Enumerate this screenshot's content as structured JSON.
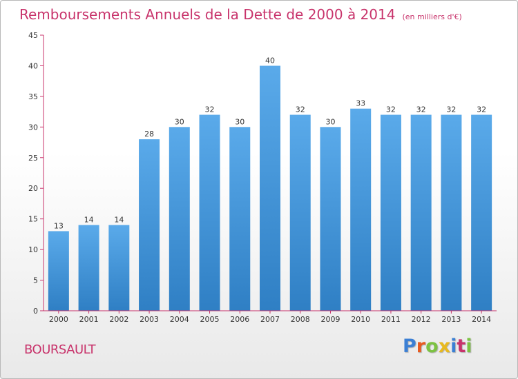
{
  "title": "Remboursements Annuels de la Dette de 2000 à 2014",
  "title_unit": "(en milliers d'€)",
  "place_name": "BOURSAULT",
  "logo": {
    "letters": [
      "P",
      "r",
      "o",
      "x",
      "i",
      "t",
      "i"
    ],
    "colors": [
      "#3b7fd4",
      "#e85a1f",
      "#7cc242",
      "#e8b91f",
      "#3b7fd4",
      "#c8336b",
      "#7cc242"
    ]
  },
  "chart_data": {
    "type": "bar",
    "categories": [
      "2000",
      "2001",
      "2002",
      "2003",
      "2004",
      "2005",
      "2006",
      "2007",
      "2008",
      "2009",
      "2010",
      "2011",
      "2012",
      "2013",
      "2014"
    ],
    "values": [
      13,
      14,
      14,
      28,
      30,
      32,
      30,
      40,
      32,
      30,
      33,
      32,
      32,
      32,
      32
    ],
    "data_labels": [
      "13",
      "14",
      "14",
      "28",
      "30",
      "32",
      "30",
      "40",
      "32",
      "30",
      "33",
      "32",
      "32",
      "32",
      "32"
    ],
    "y_ticks": [
      0,
      5,
      10,
      15,
      20,
      25,
      30,
      35,
      40,
      45
    ],
    "ylim": [
      0,
      45
    ],
    "grid": false,
    "bar_color": "#4a9de0",
    "axis_color": "#c8336b"
  }
}
